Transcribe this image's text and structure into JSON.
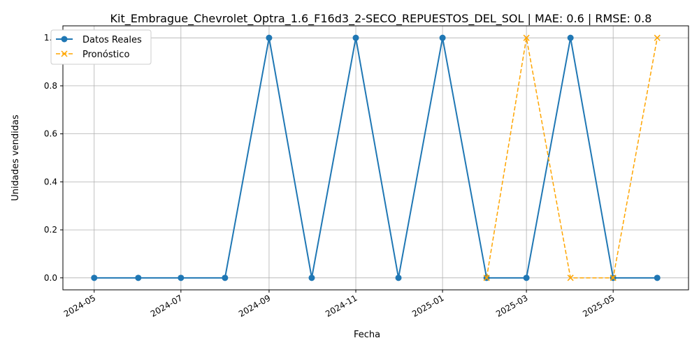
{
  "chart_data": {
    "type": "line",
    "title": "Kit_Embrague_Chevrolet_Optra_1.6_F16d3_2-SECO_REPUESTOS_DEL_SOL | MAE: 0.6 | RMSE: 0.8",
    "xlabel": "Fecha",
    "ylabel": "Unidades vendidas",
    "xlim": [
      "2024-04-09",
      "2025-06-23"
    ],
    "ylim": [
      -0.05,
      1.05
    ],
    "x_ticks": [
      "2024-05",
      "2024-07",
      "2024-09",
      "2024-11",
      "2025-01",
      "2025-03",
      "2025-05"
    ],
    "y_ticks": [
      "0.0",
      "0.2",
      "0.4",
      "0.6",
      "0.8",
      "1.0"
    ],
    "grid": true,
    "legend_position": "upper-left",
    "series": [
      {
        "name": "Datos Reales",
        "color": "#1f77b4",
        "line_style": "solid",
        "marker": "circle",
        "x": [
          "2024-05-01",
          "2024-06-01",
          "2024-07-01",
          "2024-08-01",
          "2024-09-01",
          "2024-10-01",
          "2024-11-01",
          "2024-12-01",
          "2025-01-01",
          "2025-02-01",
          "2025-03-01",
          "2025-04-01",
          "2025-05-01",
          "2025-06-01"
        ],
        "values": [
          0,
          0,
          0,
          0,
          1,
          0,
          1,
          0,
          1,
          0,
          0,
          1,
          0,
          0
        ]
      },
      {
        "name": "Pronóstico",
        "color": "#ffa500",
        "line_style": "dashed",
        "marker": "x",
        "x": [
          "2025-02-01",
          "2025-03-01",
          "2025-04-01",
          "2025-05-01",
          "2025-06-01"
        ],
        "values": [
          0,
          1,
          0,
          0,
          1
        ]
      }
    ]
  }
}
